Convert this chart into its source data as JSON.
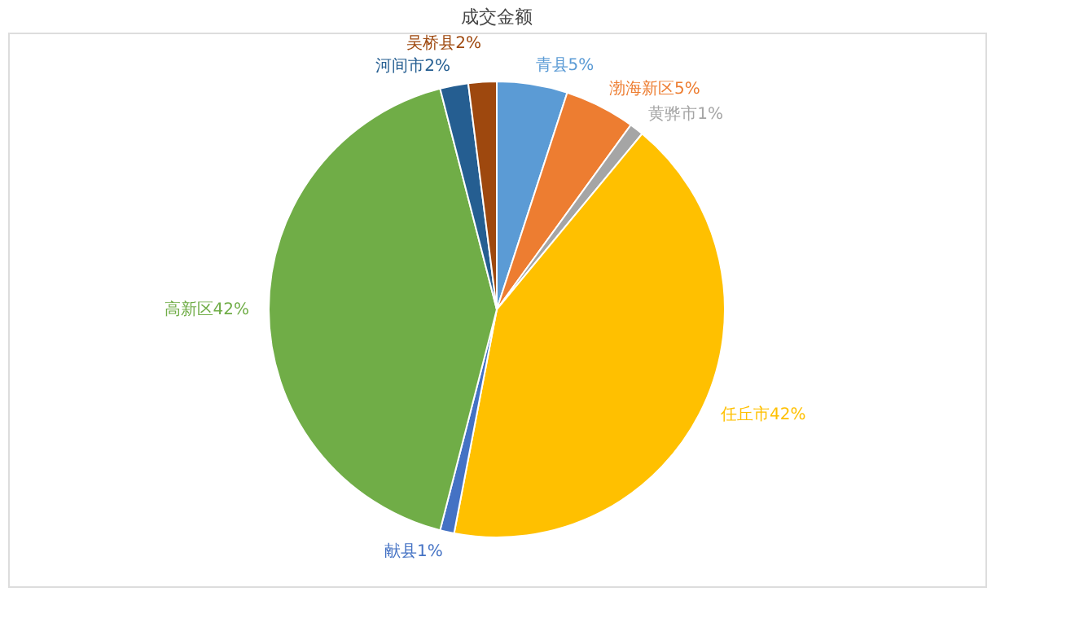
{
  "chart_data": {
    "type": "pie",
    "title": "成交金额",
    "categories": [
      "青县",
      "渤海新区",
      "黄骅市",
      "任丘市",
      "献县",
      "高新区",
      "河间市",
      "吴桥县"
    ],
    "values": [
      5,
      5,
      1,
      42,
      1,
      42,
      2,
      2
    ],
    "value_labels": [
      "5%",
      "5%",
      "1%",
      "42%",
      "1%",
      "42%",
      "2%",
      "2%"
    ],
    "colors": [
      "#5b9bd5",
      "#ed7d31",
      "#a5a5a5",
      "#ffc000",
      "#4472c4",
      "#70ad47",
      "#255e91",
      "#9e480e"
    ],
    "legend": false
  }
}
